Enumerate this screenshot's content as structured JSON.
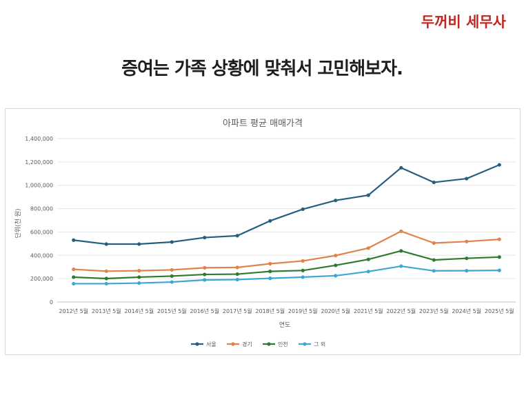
{
  "header": {
    "brand": "두꺼비 세무사",
    "headline": "증여는 가족 상황에 맞춰서 고민해보자."
  },
  "chart_data": {
    "type": "line",
    "title": "아파트 평균 매매가격",
    "xlabel": "연도",
    "ylabel": "단위(천 원)",
    "ylim": [
      0,
      1400000
    ],
    "yticks": [
      "0",
      "200,000",
      "400,000",
      "600,000",
      "800,000",
      "1,000,000",
      "1,200,000",
      "1,400,000"
    ],
    "grid": true,
    "legend_position": "bottom",
    "categories": [
      "2012년 5월",
      "2013년 5월",
      "2014년 5월",
      "2015년 5월",
      "2016년 5월",
      "2017년 5월",
      "2018년 5월",
      "2019년 5월",
      "2020년 5월",
      "2021년 5월",
      "2022년 5월",
      "2023년 5월",
      "2024년 5월",
      "2025년 5월"
    ],
    "series": [
      {
        "name": "서울",
        "color": "#255e7e",
        "values": [
          530000,
          496000,
          496000,
          514000,
          552000,
          568000,
          695000,
          795000,
          870000,
          915000,
          1150000,
          1025000,
          1057000,
          1175000
        ]
      },
      {
        "name": "경기",
        "color": "#e0824a",
        "values": [
          280000,
          264000,
          268000,
          275000,
          293000,
          296000,
          328000,
          352000,
          398000,
          462000,
          606000,
          505000,
          518000,
          537000
        ]
      },
      {
        "name": "인천",
        "color": "#2e7a2e",
        "values": [
          213000,
          201000,
          213000,
          222000,
          236000,
          239000,
          262000,
          270000,
          314000,
          365000,
          438000,
          360000,
          374000,
          385000
        ]
      },
      {
        "name": "그 외",
        "color": "#3ea6d4",
        "values": [
          157000,
          157000,
          162000,
          171000,
          189000,
          192000,
          203000,
          213000,
          225000,
          261000,
          307000,
          267000,
          268000,
          271000
        ]
      }
    ]
  }
}
